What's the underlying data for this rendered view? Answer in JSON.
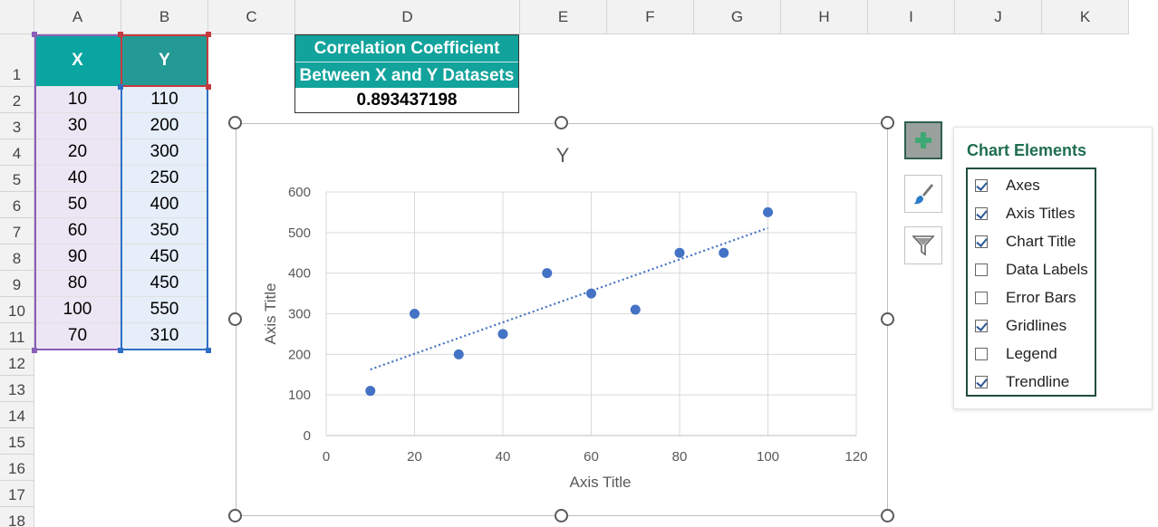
{
  "sheet": {
    "columns": [
      "A",
      "B",
      "C",
      "D",
      "E",
      "F",
      "G",
      "H",
      "I",
      "J",
      "K"
    ],
    "rows": [
      "1",
      "2",
      "3",
      "4",
      "5",
      "6",
      "7",
      "8",
      "9",
      "10",
      "11",
      "12",
      "13",
      "14",
      "15",
      "16",
      "17",
      "18"
    ]
  },
  "table": {
    "header_x": "X",
    "header_y": "Y",
    "x_values": [
      "10",
      "30",
      "20",
      "40",
      "50",
      "60",
      "90",
      "80",
      "100",
      "70"
    ],
    "y_values": [
      "110",
      "200",
      "300",
      "250",
      "400",
      "350",
      "450",
      "450",
      "550",
      "310"
    ]
  },
  "correlation": {
    "title_line1": "Correlation Coefficient",
    "title_line2": "Between X and Y Datasets",
    "value": "0.893437198"
  },
  "chart_elements": {
    "title": "Chart Elements",
    "options": [
      {
        "label": "Axes",
        "checked": true
      },
      {
        "label": "Axis Titles",
        "checked": true
      },
      {
        "label": "Chart Title",
        "checked": true
      },
      {
        "label": "Data Labels",
        "checked": false
      },
      {
        "label": "Error Bars",
        "checked": false
      },
      {
        "label": "Gridlines",
        "checked": true
      },
      {
        "label": "Legend",
        "checked": false
      },
      {
        "label": "Trendline",
        "checked": true
      }
    ]
  },
  "icons": {
    "elements": "plus-icon",
    "styles": "paintbrush-icon",
    "filters": "funnel-icon"
  },
  "colors": {
    "marker": "#4472c4",
    "header_teal": "#11a39c"
  },
  "chart_data": {
    "type": "scatter",
    "title": "Y",
    "xlabel": "Axis Title",
    "ylabel": "Axis Title",
    "xlim": [
      0,
      120
    ],
    "ylim": [
      0,
      600
    ],
    "x_ticks": [
      "0",
      "20",
      "40",
      "60",
      "80",
      "100",
      "120"
    ],
    "y_ticks": [
      "0",
      "100",
      "200",
      "300",
      "400",
      "500",
      "600"
    ],
    "grid": true,
    "legend": "none",
    "series": [
      {
        "x": [
          10,
          30,
          20,
          40,
          50,
          60,
          90,
          80,
          100,
          70
        ],
        "y": [
          110,
          200,
          300,
          250,
          400,
          350,
          450,
          450,
          550,
          310
        ]
      }
    ],
    "trendline": {
      "type": "linear",
      "style": "dotted",
      "x_range": [
        10,
        100
      ]
    }
  }
}
